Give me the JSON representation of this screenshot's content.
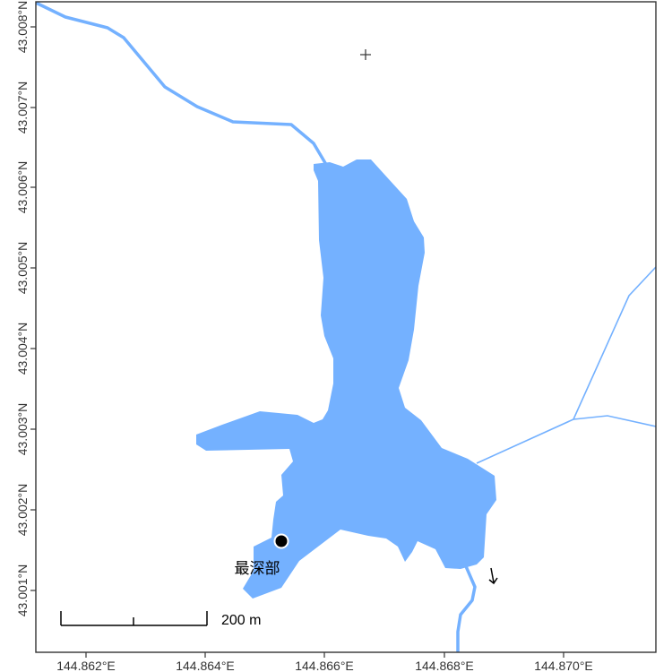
{
  "map": {
    "colors": {
      "water": "#74b1ff",
      "stream": "#74b1ff",
      "frame": "#333333",
      "background": "#ffffff"
    },
    "x_ticks": [
      "144.862°E",
      "144.864°E",
      "144.866°E",
      "144.868°E",
      "144.870°E"
    ],
    "y_ticks": [
      "43.001°N",
      "43.002°N",
      "43.003°N",
      "43.004°N",
      "43.005°N",
      "43.006°N",
      "43.007°N",
      "43.008°N"
    ],
    "deepest_point": {
      "label": "最深部",
      "icon": "filled-circle-marker"
    },
    "scale_bar": {
      "label": "200 m"
    },
    "markers": {
      "cross": "plus-icon",
      "arrow": "down-arrow-icon"
    }
  }
}
